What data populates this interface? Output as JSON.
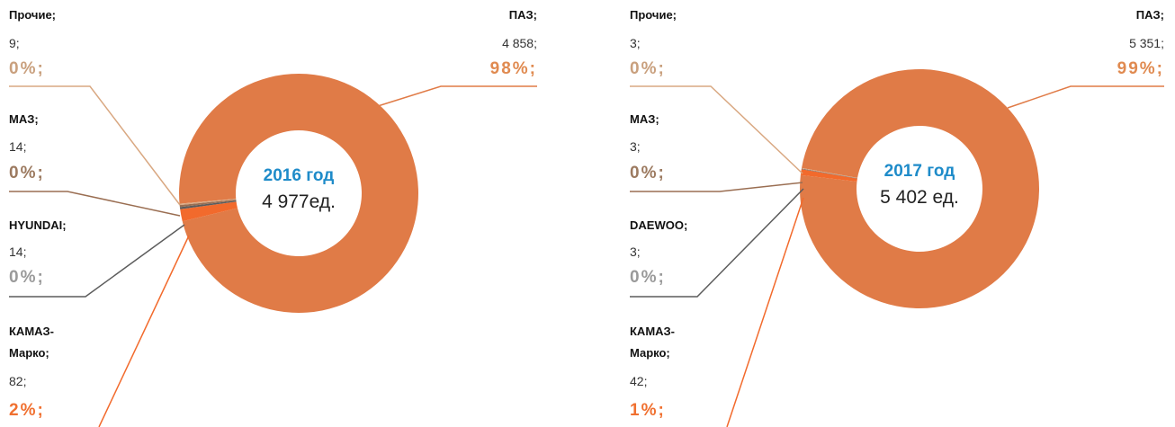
{
  "chart_data": [
    {
      "type": "pie",
      "center_title": "2016 год",
      "center_label": "4 977ед.",
      "categories": [
        "ПАЗ;",
        "КАМАЗ-Марко;",
        "HYUNDAI;",
        "МАЗ;",
        "Прочие;"
      ],
      "values": [
        4858,
        82,
        14,
        14,
        9
      ],
      "value_labels": [
        "4 858;",
        "82;",
        "14;",
        "14;",
        "9;"
      ],
      "percents": [
        98,
        2,
        0,
        0,
        0
      ],
      "percent_labels": [
        "98%;",
        "2%;",
        "0%;",
        "0%;",
        "0%;"
      ],
      "colors": [
        "#e07b47",
        "#f26a2c",
        "#5c5c5c",
        "#9a6e52",
        "#d9a882"
      ],
      "label_colors": [
        "#e08a50",
        "#f07030",
        "#9a9a9a",
        "#9c7a60",
        "#c9a07e"
      ]
    },
    {
      "type": "pie",
      "center_title": "2017 год",
      "center_label": "5 402 ед.",
      "categories": [
        "ПАЗ;",
        "КАМАЗ-Марко;",
        "DAEWOO;",
        "МАЗ;",
        "Прочие;"
      ],
      "values": [
        5351,
        42,
        3,
        3,
        3
      ],
      "value_labels": [
        "5 351;",
        "42;",
        "3;",
        "3;",
        "3;"
      ],
      "percents": [
        99,
        1,
        0,
        0,
        0
      ],
      "percent_labels": [
        "99%;",
        "1%;",
        "0%;",
        "0%;",
        "0%;"
      ],
      "colors": [
        "#e07b47",
        "#f26a2c",
        "#5c5c5c",
        "#9a6e52",
        "#d9a882"
      ],
      "label_colors": [
        "#e08a50",
        "#f07030",
        "#9a9a9a",
        "#9c7a60",
        "#c9a07e"
      ]
    }
  ]
}
